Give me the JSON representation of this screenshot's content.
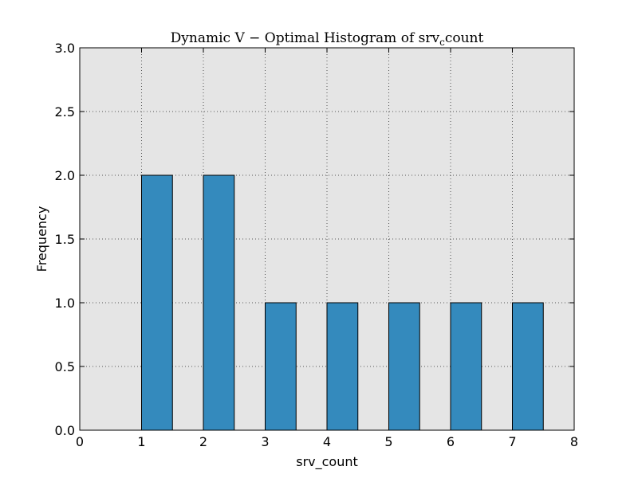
{
  "chart_data": {
    "type": "bar",
    "title": {
      "main": "Dynamic V − Optimal Histogram of srv",
      "subscript": "c",
      "suffix": "count"
    },
    "xlabel": "srv_count",
    "ylabel": "Frequency",
    "xlim": [
      0,
      8
    ],
    "ylim": [
      0,
      3.0
    ],
    "xticks": [
      "0",
      "1",
      "2",
      "3",
      "4",
      "5",
      "6",
      "7",
      "8"
    ],
    "yticks": [
      "0.0",
      "0.5",
      "1.0",
      "1.5",
      "2.0",
      "2.5",
      "3.0"
    ],
    "grid": true,
    "bins": [
      {
        "x_start": 1.0,
        "x_end": 1.5,
        "value": 2
      },
      {
        "x_start": 2.0,
        "x_end": 2.5,
        "value": 2
      },
      {
        "x_start": 3.0,
        "x_end": 3.5,
        "value": 1
      },
      {
        "x_start": 4.0,
        "x_end": 4.5,
        "value": 1
      },
      {
        "x_start": 5.0,
        "x_end": 5.5,
        "value": 1
      },
      {
        "x_start": 6.0,
        "x_end": 6.5,
        "value": 1
      },
      {
        "x_start": 7.0,
        "x_end": 7.5,
        "value": 1
      }
    ],
    "colors": {
      "bar": "#348abd",
      "plot_background": "#e5e5e5",
      "grid": "#555555"
    }
  }
}
